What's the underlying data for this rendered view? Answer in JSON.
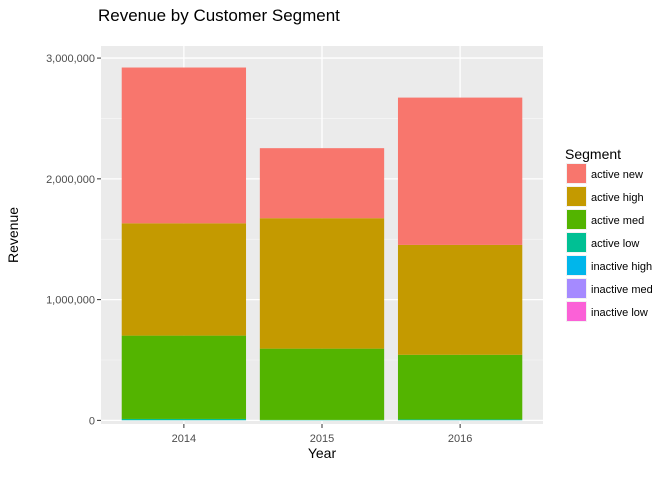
{
  "chart_data": {
    "type": "bar",
    "stacked": true,
    "title": "Revenue by Customer Segment",
    "xlabel": "Year",
    "ylabel": "Revenue",
    "categories": [
      "2014",
      "2015",
      "2016"
    ],
    "ylim": [
      -30000,
      3100000
    ],
    "yticks": [
      0,
      1000000,
      2000000,
      3000000
    ],
    "ytick_labels": [
      "0",
      "1,000,000",
      "2,000,000",
      "3,000,000"
    ],
    "grid": true,
    "legend_title": "Segment",
    "legend_position": "right",
    "series": [
      {
        "name": "active new",
        "color": "#F8766D",
        "values": [
          1290000,
          580000,
          1220000
        ]
      },
      {
        "name": "active high",
        "color": "#C49A00",
        "values": [
          930000,
          1080000,
          910000
        ]
      },
      {
        "name": "active med",
        "color": "#53B400",
        "values": [
          690000,
          590000,
          535000
        ]
      },
      {
        "name": "active low",
        "color": "#00C094",
        "values": [
          10000,
          3000,
          6000
        ]
      },
      {
        "name": "inactive high",
        "color": "#00B6EB",
        "values": [
          1000,
          500,
          1000
        ]
      },
      {
        "name": "inactive med",
        "color": "#A58AFF",
        "values": [
          500,
          300,
          500
        ]
      },
      {
        "name": "inactive low",
        "color": "#FB61D7",
        "values": [
          300,
          200,
          300
        ]
      }
    ]
  }
}
